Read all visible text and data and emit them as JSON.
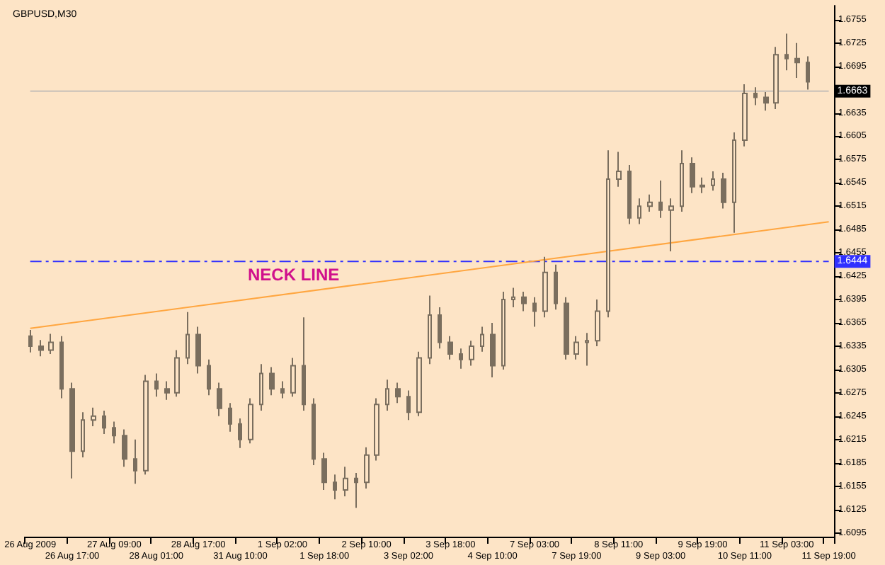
{
  "chart_data": {
    "type": "candlestick",
    "title": "GBPUSD,M30",
    "categories": [
      "26 Aug 2009",
      null,
      null,
      null,
      "26 Aug 17:00",
      null,
      null,
      null,
      "27 Aug 09:00",
      null,
      null,
      null,
      "28 Aug 01:00",
      null,
      null,
      null,
      "28 Aug 17:00",
      null,
      null,
      null,
      "31 Aug 10:00",
      null,
      null,
      null,
      "1 Sep 02:00",
      null,
      null,
      null,
      "1 Sep 18:00",
      null,
      null,
      null,
      "2 Sep 10:00",
      null,
      null,
      null,
      "3 Sep 02:00",
      null,
      null,
      null,
      "3 Sep 18:00",
      null,
      null,
      null,
      "4 Sep 10:00",
      null,
      null,
      null,
      "7 Sep 03:00",
      null,
      null,
      null,
      "7 Sep 19:00",
      null,
      null,
      null,
      "8 Sep 11:00",
      null,
      null,
      null,
      "9 Sep 03:00",
      null,
      null,
      null,
      "9 Sep 19:00",
      null,
      null,
      null,
      "10 Sep 11:00",
      null,
      null,
      null,
      "11 Sep 03:00",
      null,
      null,
      null,
      "11 Sep 19:00"
    ],
    "series": [
      {
        "color": "#7a6e5e",
        "ohlc": [
          [
            1.6348,
            1.6356,
            1.6327,
            1.6335
          ],
          [
            1.6335,
            1.6343,
            1.6322,
            1.633
          ],
          [
            1.633,
            1.6351,
            1.6325,
            1.634
          ],
          [
            1.634,
            1.6348,
            1.6268,
            1.628
          ],
          [
            1.628,
            1.6288,
            1.6165,
            1.62
          ],
          [
            1.62,
            1.625,
            1.6192,
            1.624
          ],
          [
            1.624,
            1.6256,
            1.6232,
            1.6245
          ],
          [
            1.6245,
            1.6252,
            1.6222,
            1.623
          ],
          [
            1.623,
            1.6238,
            1.621,
            1.622
          ],
          [
            1.622,
            1.6228,
            1.618,
            1.619
          ],
          [
            1.619,
            1.6215,
            1.6158,
            1.6175
          ],
          [
            1.6175,
            1.6298,
            1.617,
            1.629
          ],
          [
            1.629,
            1.63,
            1.627,
            1.628
          ],
          [
            1.628,
            1.629,
            1.6266,
            1.6275
          ],
          [
            1.6275,
            1.633,
            1.627,
            1.632
          ],
          [
            1.632,
            1.6379,
            1.6312,
            1.635
          ],
          [
            1.635,
            1.636,
            1.63,
            1.631
          ],
          [
            1.631,
            1.6318,
            1.6272,
            1.628
          ],
          [
            1.628,
            1.6288,
            1.6245,
            1.6255
          ],
          [
            1.6255,
            1.6262,
            1.6225,
            1.6235
          ],
          [
            1.6235,
            1.6242,
            1.6204,
            1.6215
          ],
          [
            1.6215,
            1.6268,
            1.621,
            1.626
          ],
          [
            1.626,
            1.6312,
            1.6252,
            1.63
          ],
          [
            1.63,
            1.6308,
            1.6272,
            1.628
          ],
          [
            1.628,
            1.629,
            1.6268,
            1.6275
          ],
          [
            1.6275,
            1.632,
            1.627,
            1.631
          ],
          [
            1.631,
            1.6372,
            1.6252,
            1.626
          ],
          [
            1.626,
            1.6268,
            1.6182,
            1.619
          ],
          [
            1.619,
            1.6198,
            1.615,
            1.616
          ],
          [
            1.616,
            1.617,
            1.6138,
            1.615
          ],
          [
            1.615,
            1.618,
            1.6142,
            1.6165
          ],
          [
            1.6165,
            1.6172,
            1.6127,
            1.616
          ],
          [
            1.616,
            1.6205,
            1.6152,
            1.6195
          ],
          [
            1.6195,
            1.6268,
            1.6188,
            1.626
          ],
          [
            1.626,
            1.6292,
            1.6252,
            1.628
          ],
          [
            1.628,
            1.6288,
            1.6262,
            1.627
          ],
          [
            1.627,
            1.6278,
            1.624,
            1.625
          ],
          [
            1.625,
            1.6328,
            1.6245,
            1.632
          ],
          [
            1.632,
            1.64,
            1.6312,
            1.6375
          ],
          [
            1.6375,
            1.6385,
            1.6332,
            1.634
          ],
          [
            1.634,
            1.6348,
            1.6318,
            1.6325
          ],
          [
            1.6325,
            1.6332,
            1.6306,
            1.6318
          ],
          [
            1.6318,
            1.6342,
            1.631,
            1.6335
          ],
          [
            1.6335,
            1.636,
            1.6328,
            1.635
          ],
          [
            1.635,
            1.6365,
            1.6295,
            1.631
          ],
          [
            1.631,
            1.6405,
            1.6305,
            1.6395
          ],
          [
            1.6395,
            1.641,
            1.6385,
            1.6398
          ],
          [
            1.6398,
            1.6405,
            1.638,
            1.639
          ],
          [
            1.639,
            1.6398,
            1.636,
            1.638
          ],
          [
            1.638,
            1.645,
            1.6372,
            1.643
          ],
          [
            1.643,
            1.644,
            1.6382,
            1.639
          ],
          [
            1.639,
            1.6398,
            1.6318,
            1.6325
          ],
          [
            1.6325,
            1.6348,
            1.6318,
            1.634
          ],
          [
            1.634,
            1.6352,
            1.631,
            1.6342
          ],
          [
            1.6342,
            1.6395,
            1.6335,
            1.638
          ],
          [
            1.638,
            1.6587,
            1.6372,
            1.655
          ],
          [
            1.655,
            1.6585,
            1.654,
            1.656
          ],
          [
            1.656,
            1.6568,
            1.6492,
            1.65
          ],
          [
            1.65,
            1.6525,
            1.6492,
            1.6515
          ],
          [
            1.6515,
            1.653,
            1.6508,
            1.652
          ],
          [
            1.652,
            1.6548,
            1.65,
            1.651
          ],
          [
            1.651,
            1.6525,
            1.6457,
            1.6515
          ],
          [
            1.6515,
            1.6587,
            1.6508,
            1.657
          ],
          [
            1.657,
            1.6578,
            1.6532,
            1.654
          ],
          [
            1.654,
            1.6552,
            1.6532,
            1.6542
          ],
          [
            1.6542,
            1.656,
            1.6535,
            1.655
          ],
          [
            1.655,
            1.6558,
            1.6512,
            1.652
          ],
          [
            1.652,
            1.661,
            1.6481,
            1.66
          ],
          [
            1.66,
            1.6672,
            1.6592,
            1.666
          ],
          [
            1.666,
            1.6668,
            1.6645,
            1.6655
          ],
          [
            1.6655,
            1.6662,
            1.6638,
            1.6648
          ],
          [
            1.6648,
            1.672,
            1.664,
            1.671
          ],
          [
            1.671,
            1.6737,
            1.669,
            1.6705
          ],
          [
            1.6705,
            1.6725,
            1.668,
            1.67
          ],
          [
            1.67,
            1.6708,
            1.6665,
            1.6675
          ],
          null,
          null
        ]
      },
      {
        "type": "line",
        "color": "#ffa640",
        "x": [
          "26 Aug 2009",
          "11 Sep 19:00"
        ],
        "values": [
          1.6358,
          1.6495
        ]
      }
    ],
    "ylim": [
      1.609,
      1.6773
    ],
    "yticks": [
      1.6095,
      1.6125,
      1.6155,
      1.6185,
      1.6215,
      1.6245,
      1.6275,
      1.6305,
      1.6335,
      1.6365,
      1.6395,
      1.6425,
      1.6455,
      1.6485,
      1.6515,
      1.6545,
      1.6575,
      1.6605,
      1.6635,
      {
        "value": 1.6665,
        "label": null
      },
      1.6695,
      1.6725,
      1.6755
    ],
    "ref_lines": [
      {
        "axis": "y",
        "value": 1.6444,
        "label": "1.6444",
        "color": "#3030ff",
        "line_style": "dashed"
      },
      {
        "axis": "y",
        "value": 1.6663,
        "label": "1.6663",
        "color": "#c8c0b8",
        "line_style": "solid"
      }
    ],
    "annotations": [
      "NECK LINE"
    ],
    "grid": false
  }
}
